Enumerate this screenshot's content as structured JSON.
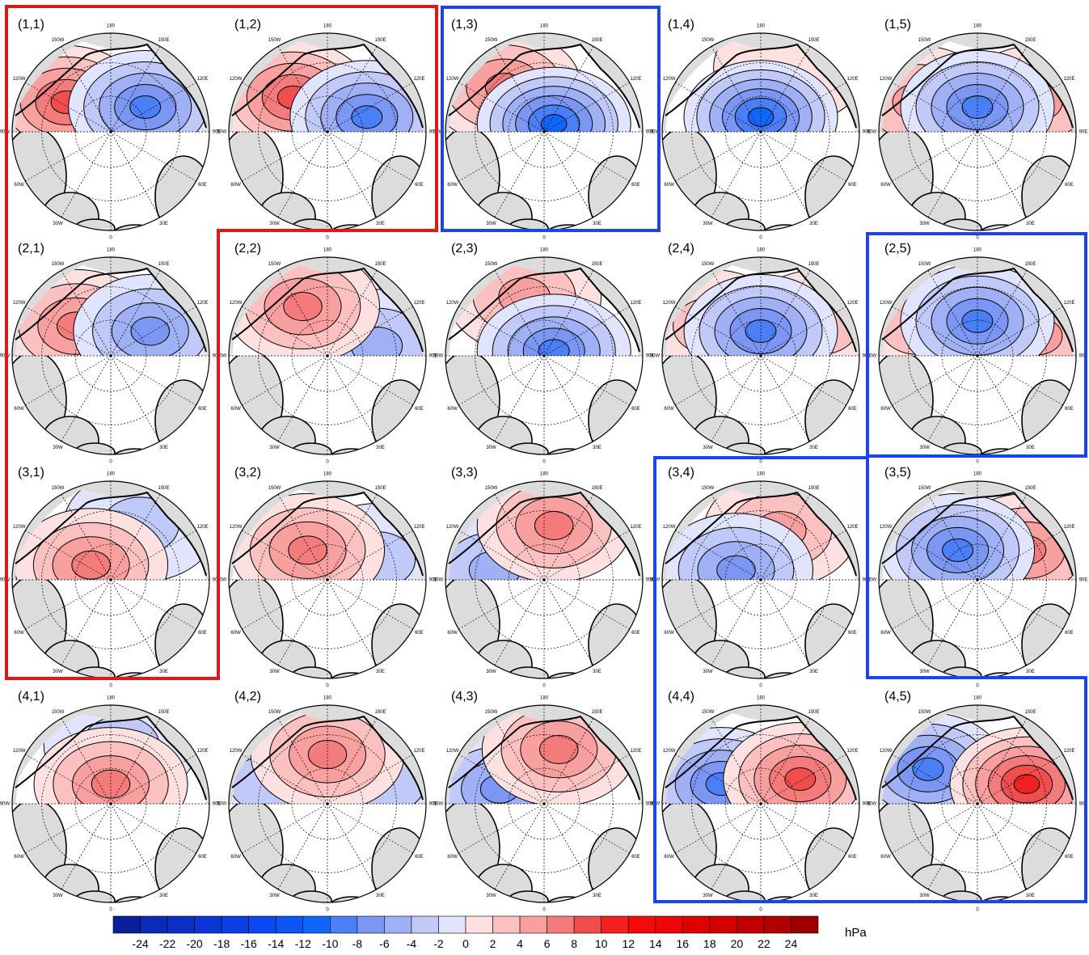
{
  "panels": [
    "(1,1)",
    "(1,2)",
    "(1,3)",
    "(1,4)",
    "(1,5)",
    "(2,1)",
    "(2,2)",
    "(2,3)",
    "(2,4)",
    "(2,5)",
    "(3,1)",
    "(3,2)",
    "(3,3)",
    "(3,4)",
    "(3,5)",
    "(4,1)",
    "(4,2)",
    "(4,3)",
    "(4,4)",
    "(4,5)"
  ],
  "lon_labels": [
    "180",
    "150W",
    "150E",
    "120W",
    "120E",
    "90W",
    "90E",
    "60W",
    "60E",
    "30W",
    "30E",
    "0"
  ],
  "colorbar": {
    "ticks": [
      -24,
      -22,
      -20,
      -18,
      -16,
      -14,
      -12,
      -10,
      -8,
      -6,
      -4,
      -2,
      0,
      2,
      4,
      6,
      8,
      10,
      12,
      14,
      16,
      18,
      20,
      22,
      24
    ],
    "colors": [
      "#0a1f9c",
      "#0a2ab8",
      "#0b30c8",
      "#0a36d8",
      "#0a3ee6",
      "#0a48f0",
      "#0b55f5",
      "#0f66fa",
      "#4a7ff5",
      "#7b97f3",
      "#9fb0f5",
      "#c0c9f8",
      "#e0e4fc",
      "#fde0e0",
      "#fbc0c0",
      "#f8a0a0",
      "#f37b7b",
      "#f04d4d",
      "#f22020",
      "#f50a0a",
      "#ee0505",
      "#e00000",
      "#d20000",
      "#c20000",
      "#b00000",
      "#9e0000"
    ],
    "unit": "hPa"
  }
}
